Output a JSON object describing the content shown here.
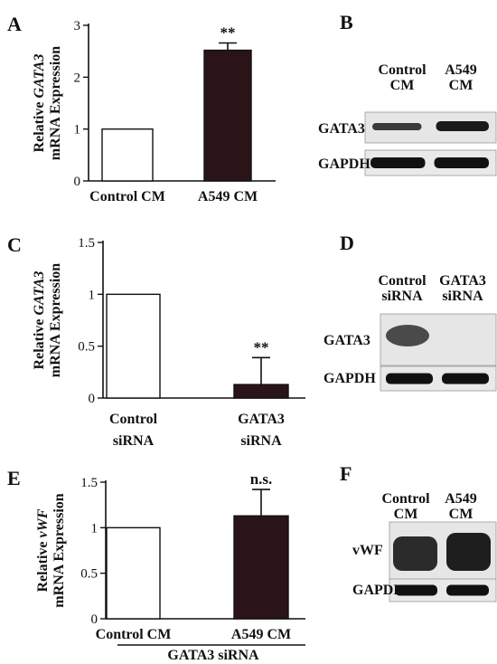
{
  "chart_data": [
    {
      "panel": "A",
      "type": "bar",
      "categories": [
        "Control CM",
        "A549 CM"
      ],
      "values": [
        1.0,
        2.52
      ],
      "errors": [
        0,
        0.14
      ],
      "fills": [
        "#ffffff",
        "#2a1418"
      ],
      "ylim": [
        0,
        3
      ],
      "yticks": [
        "0",
        "1",
        "2",
        "3"
      ],
      "ylabel_pre": "Relative ",
      "ylabel_gene": "GATA3",
      "ylabel_line2": "mRNA Expression",
      "annotations": [
        "",
        "**"
      ]
    },
    {
      "panel": "C",
      "type": "bar",
      "categories": [
        [
          "Control",
          "siRNA"
        ],
        [
          "GATA3",
          "siRNA"
        ]
      ],
      "values": [
        1.0,
        0.13
      ],
      "errors": [
        0,
        0.26
      ],
      "fills": [
        "#ffffff",
        "#2a1418"
      ],
      "ylim": [
        0,
        1.5
      ],
      "yticks": [
        "0",
        "0.5",
        "1",
        "1.5"
      ],
      "ylabel_pre": "Relative ",
      "ylabel_gene": "GATA3",
      "ylabel_line2": "mRNA Expression",
      "annotations": [
        "",
        "**"
      ]
    },
    {
      "panel": "E",
      "type": "bar",
      "categories": [
        "Control CM",
        "A549 CM"
      ],
      "values": [
        1.0,
        1.13
      ],
      "errors": [
        0,
        0.29
      ],
      "fills": [
        "#ffffff",
        "#2a1418"
      ],
      "ylim": [
        0,
        1.5
      ],
      "yticks": [
        "0",
        "0.5",
        "1",
        "1.5"
      ],
      "ylabel_pre": "Relative ",
      "ylabel_gene": "vWF",
      "ylabel_line2": "mRNA Expression",
      "annotations": [
        "",
        "n.s."
      ],
      "group_label": "GATA3 siRNA"
    }
  ],
  "blots": [
    {
      "panel": "B",
      "columns": [
        [
          "Control",
          "CM"
        ],
        [
          "A549",
          "CM"
        ]
      ],
      "rows": [
        "GATA3",
        "GAPDH"
      ]
    },
    {
      "panel": "D",
      "columns": [
        [
          "Control",
          "siRNA"
        ],
        [
          "GATA3",
          "siRNA"
        ]
      ],
      "rows": [
        "GATA3",
        "GAPDH"
      ]
    },
    {
      "panel": "F",
      "columns": [
        [
          "Control",
          "CM"
        ],
        [
          "A549",
          "CM"
        ]
      ],
      "rows": [
        "vWF",
        "GAPDH"
      ]
    }
  ],
  "panel_letters": [
    "A",
    "B",
    "C",
    "D",
    "E",
    "F"
  ]
}
